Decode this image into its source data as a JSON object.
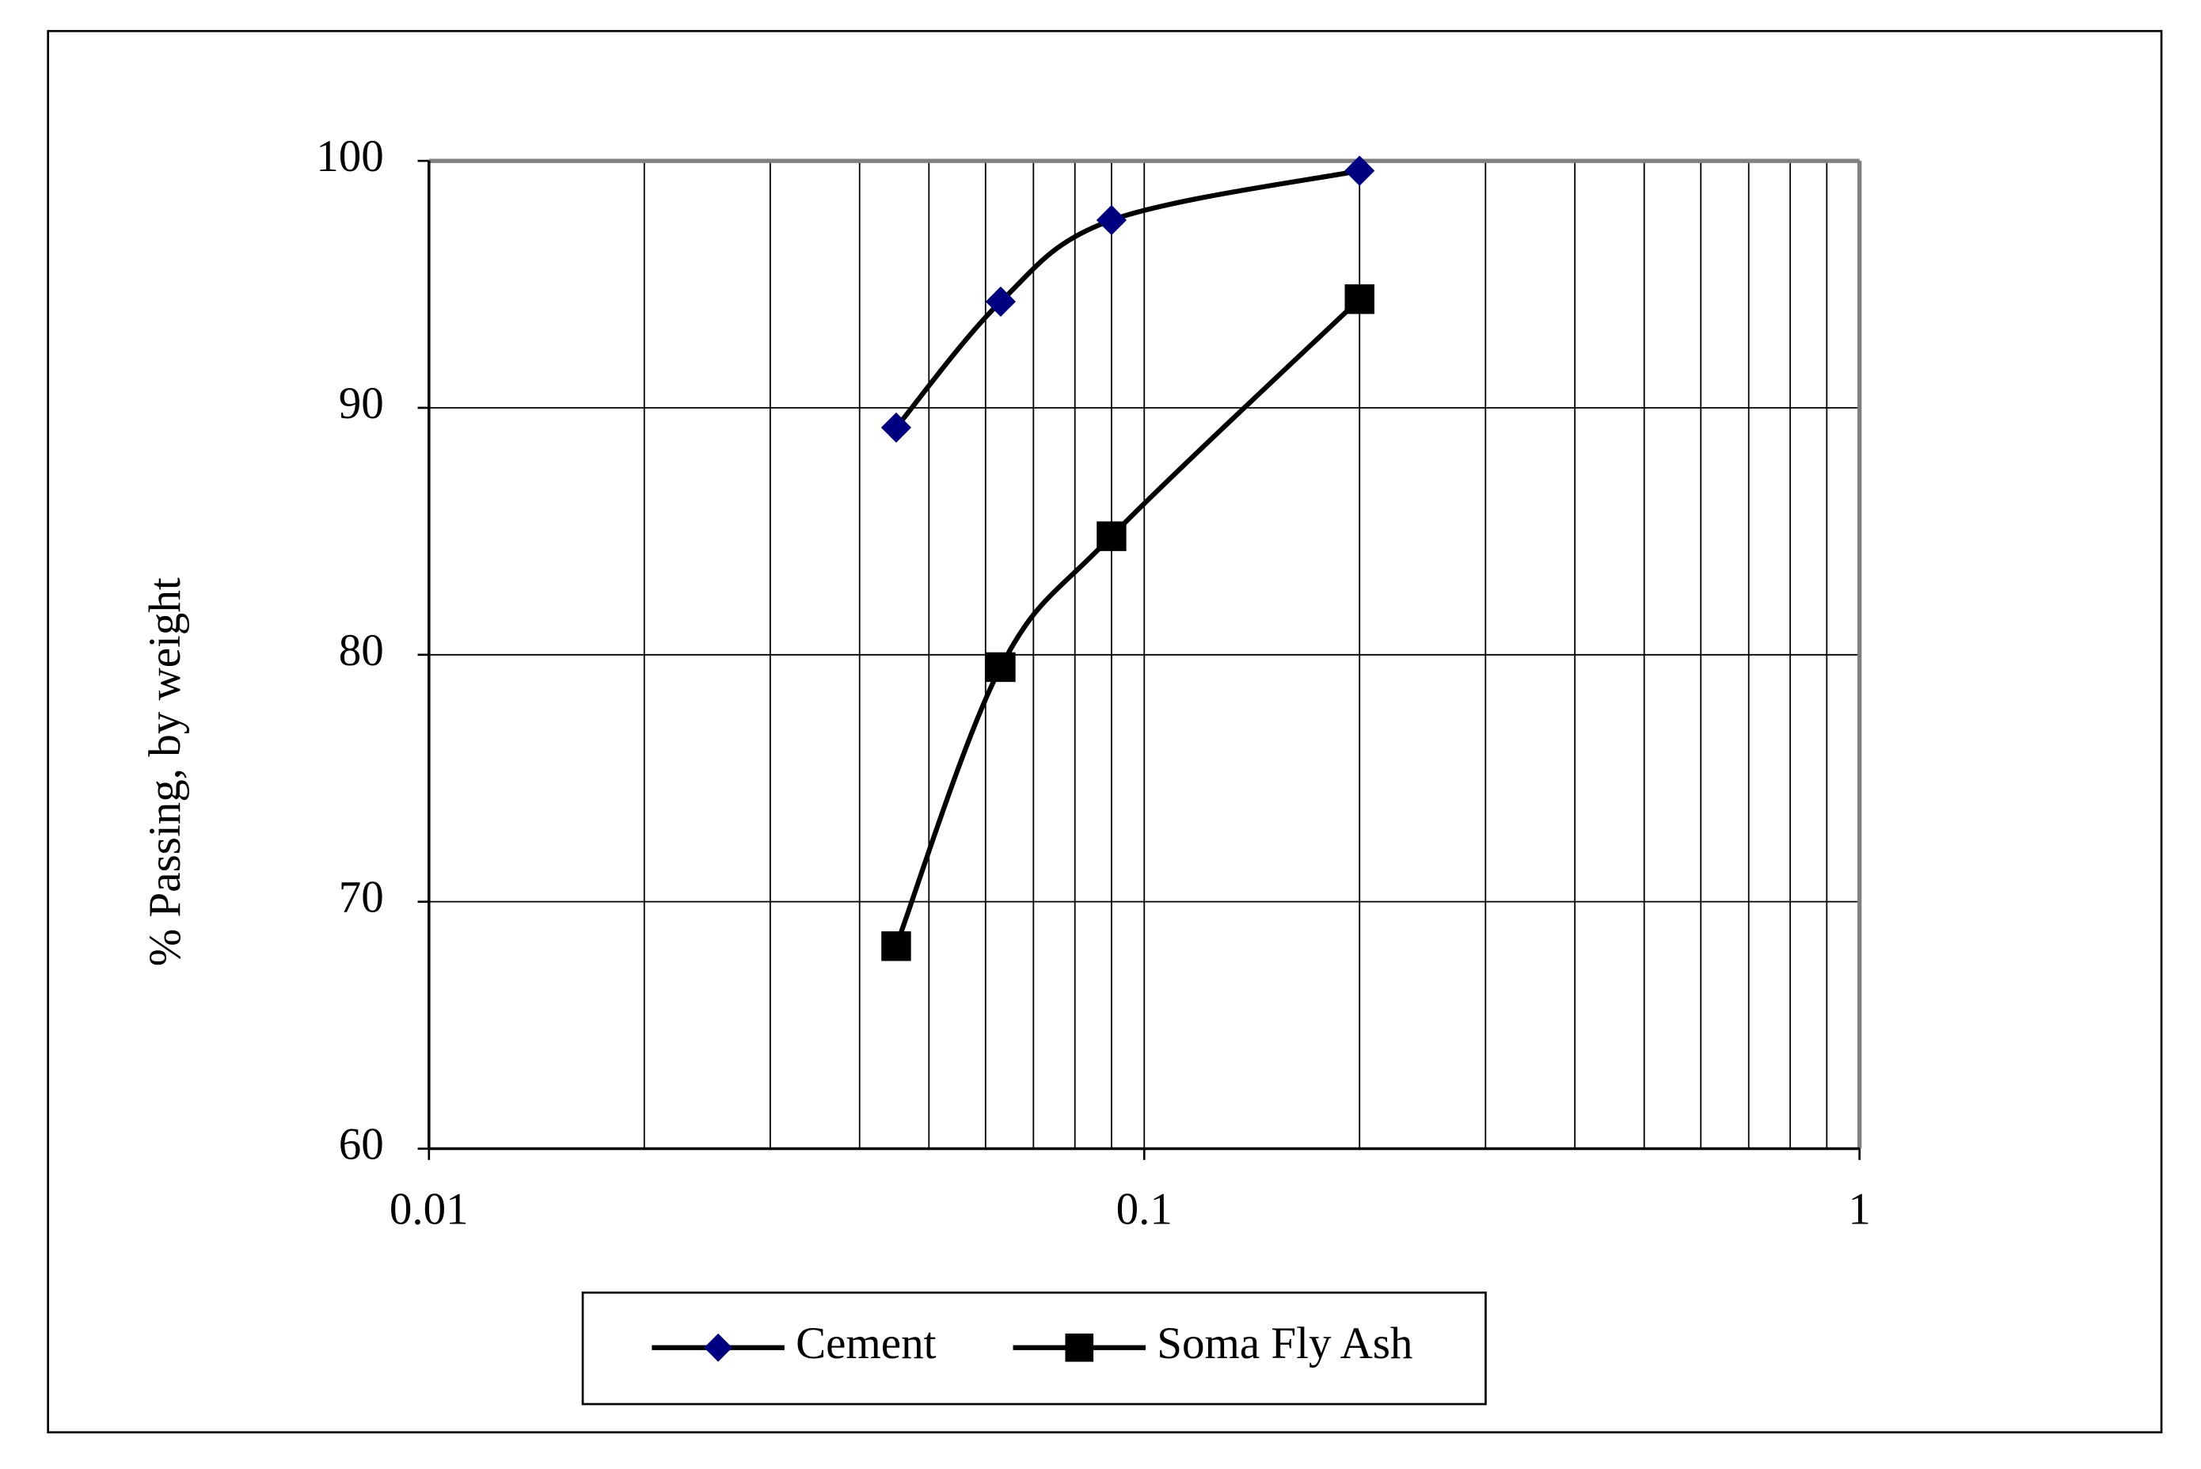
{
  "chart_data": {
    "type": "line",
    "x": [
      0.045,
      0.063,
      0.09,
      0.2
    ],
    "series": [
      {
        "name": "Cement",
        "color": "#000080",
        "line_color": "#000000",
        "marker": "diamond",
        "values": [
          89.2,
          94.3,
          97.6,
          99.6
        ]
      },
      {
        "name": "Soma Fly Ash",
        "color": "#000000",
        "line_color": "#000000",
        "marker": "square",
        "values": [
          68.2,
          79.5,
          84.8,
          94.4
        ]
      }
    ],
    "y_label": "% Passing, by weight",
    "xlim": [
      0.01,
      1
    ],
    "xticks": [
      0.01,
      0.1,
      1
    ],
    "x_log": true,
    "ylim": [
      60,
      100
    ],
    "yticks": [
      60,
      70,
      80,
      90,
      100
    ],
    "grid": true,
    "minor_grid": true,
    "smooth": true,
    "legend": "bottom"
  }
}
